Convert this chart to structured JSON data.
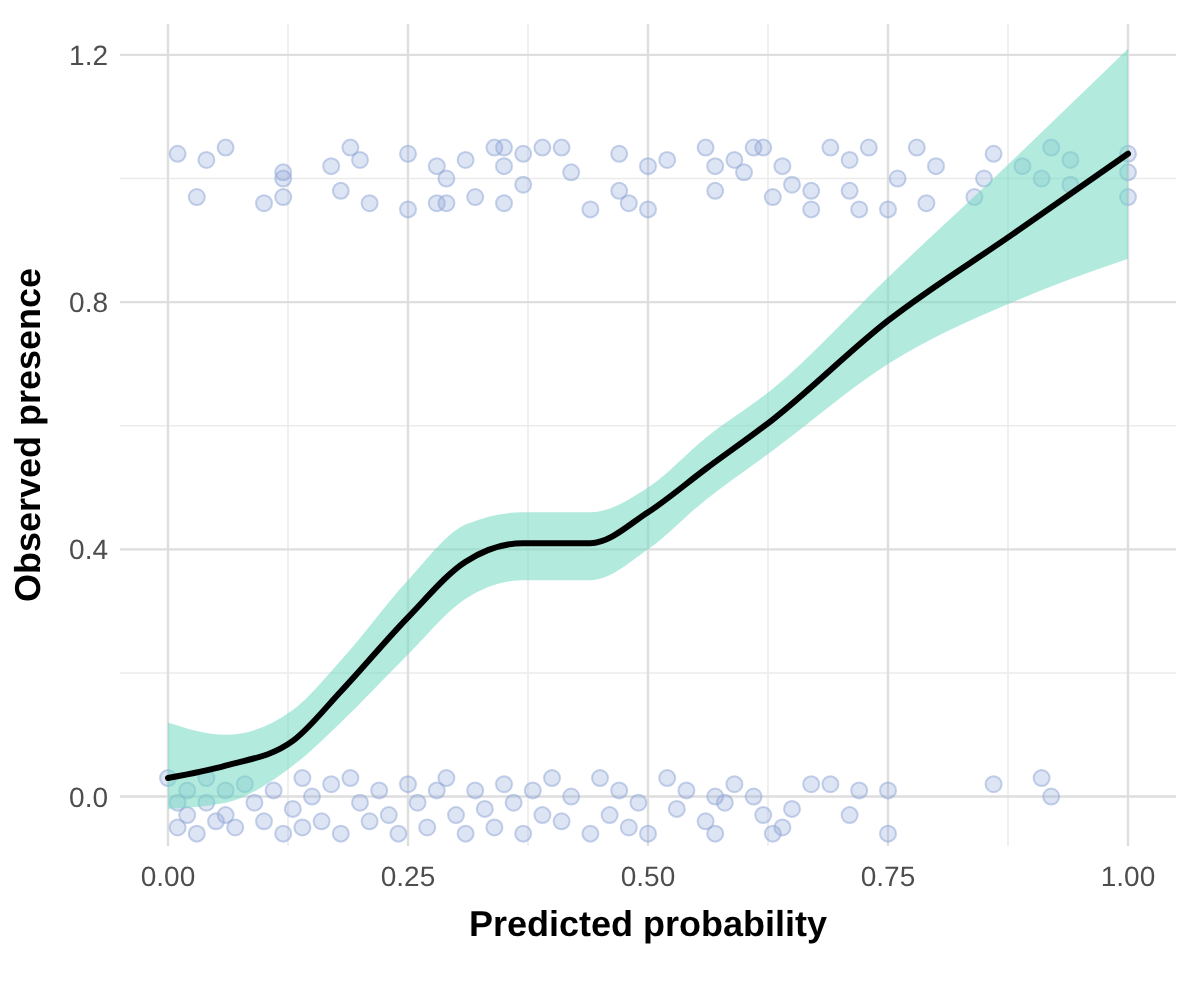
{
  "chart_data": {
    "type": "scatter",
    "xlabel": "Predicted probability",
    "ylabel": "Observed presence",
    "xlim": [
      -0.05,
      1.05
    ],
    "ylim": [
      -0.08,
      1.25
    ],
    "xticks": [
      {
        "value": 0,
        "label": "0.00"
      },
      {
        "value": 0.25,
        "label": "0.25"
      },
      {
        "value": 0.5,
        "label": "0.50"
      },
      {
        "value": 0.75,
        "label": "0.75"
      },
      {
        "value": 1,
        "label": "1.00"
      }
    ],
    "yticks": [
      {
        "value": 0,
        "label": "0.0"
      },
      {
        "value": 0.4,
        "label": "0.4"
      },
      {
        "value": 0.8,
        "label": "0.8"
      },
      {
        "value": 1.2,
        "label": "1.2"
      }
    ],
    "grid": true,
    "marker": "circle",
    "series": [
      {
        "color": "#8ea6d6",
        "x": [
          0.01,
          0.03,
          0.04,
          0.06,
          0.1,
          0.12,
          0.12,
          0.12,
          0.17,
          0.18,
          0.19,
          0.2,
          0.21,
          0.25,
          0.25,
          0.28,
          0.28,
          0.29,
          0.29,
          0.31,
          0.32,
          0.34,
          0.35,
          0.35,
          0.35,
          0.37,
          0.37,
          0.39,
          0.41,
          0.42,
          0.44,
          0.47,
          0.47,
          0.48,
          0.5,
          0.5,
          0.52,
          0.56,
          0.57,
          0.57,
          0.59,
          0.6,
          0.61,
          0.62,
          0.63,
          0.64,
          0.65,
          0.67,
          0.67,
          0.69,
          0.71,
          0.71,
          0.72,
          0.73,
          0.75,
          0.76,
          0.78,
          0.79,
          0.8,
          0.84,
          0.85,
          0.86,
          0.89,
          0.91,
          0.92,
          0.94,
          0.94,
          1.0,
          1.0,
          1.0
        ],
        "values": [
          1.04,
          0.97,
          1.03,
          1.05,
          0.96,
          1.01,
          1.0,
          0.97,
          1.02,
          0.98,
          1.05,
          1.03,
          0.96,
          1.04,
          0.95,
          1.02,
          0.96,
          1.0,
          0.96,
          1.03,
          0.97,
          1.05,
          1.05,
          1.02,
          0.96,
          0.99,
          1.04,
          1.05,
          1.05,
          1.01,
          0.95,
          0.98,
          1.04,
          0.96,
          1.02,
          0.95,
          1.03,
          1.05,
          0.98,
          1.02,
          1.03,
          1.01,
          1.05,
          1.05,
          0.97,
          1.02,
          0.99,
          0.98,
          0.95,
          1.05,
          1.03,
          0.98,
          0.95,
          1.05,
          0.95,
          1.0,
          1.05,
          0.96,
          1.02,
          0.97,
          1.0,
          1.04,
          1.02,
          1.0,
          1.05,
          1.03,
          0.99,
          1.04,
          1.01,
          0.97
        ]
      },
      {
        "color": "#8ea6d6",
        "x": [
          0.0,
          0.01,
          0.01,
          0.02,
          0.02,
          0.03,
          0.04,
          0.04,
          0.05,
          0.06,
          0.06,
          0.07,
          0.08,
          0.09,
          0.1,
          0.11,
          0.12,
          0.13,
          0.14,
          0.14,
          0.15,
          0.16,
          0.17,
          0.18,
          0.19,
          0.2,
          0.21,
          0.22,
          0.23,
          0.24,
          0.25,
          0.26,
          0.27,
          0.28,
          0.29,
          0.3,
          0.31,
          0.32,
          0.33,
          0.34,
          0.35,
          0.36,
          0.37,
          0.38,
          0.39,
          0.4,
          0.41,
          0.42,
          0.44,
          0.45,
          0.46,
          0.47,
          0.48,
          0.49,
          0.5,
          0.52,
          0.53,
          0.54,
          0.56,
          0.57,
          0.57,
          0.58,
          0.59,
          0.61,
          0.62,
          0.63,
          0.64,
          0.65,
          0.67,
          0.69,
          0.71,
          0.72,
          0.75,
          0.75,
          0.86,
          0.91,
          0.92
        ],
        "values": [
          0.03,
          -0.01,
          -0.05,
          0.01,
          -0.03,
          -0.06,
          0.03,
          -0.01,
          -0.04,
          0.01,
          -0.03,
          -0.05,
          0.02,
          -0.01,
          -0.04,
          0.01,
          -0.06,
          -0.02,
          0.03,
          -0.05,
          0.0,
          -0.04,
          0.02,
          -0.06,
          0.03,
          -0.01,
          -0.04,
          0.01,
          -0.03,
          -0.06,
          0.02,
          -0.01,
          -0.05,
          0.01,
          0.03,
          -0.03,
          -0.06,
          0.01,
          -0.02,
          -0.05,
          0.02,
          -0.01,
          -0.06,
          0.01,
          -0.03,
          0.03,
          -0.04,
          0.0,
          -0.06,
          0.03,
          -0.03,
          0.01,
          -0.05,
          -0.01,
          -0.06,
          0.03,
          -0.02,
          0.01,
          -0.04,
          0.0,
          -0.06,
          -0.01,
          0.02,
          0.0,
          -0.03,
          -0.06,
          -0.05,
          -0.02,
          0.02,
          0.02,
          -0.03,
          0.01,
          0.01,
          -0.06,
          0.02,
          0.03,
          0.0
        ]
      },
      {
        "type": "line",
        "color": "#000000",
        "marker": "none",
        "x": [
          0.0,
          0.06,
          0.13,
          0.18,
          0.25,
          0.31,
          0.37,
          0.44,
          0.5,
          0.56,
          0.63,
          0.75,
          0.88,
          1.0
        ],
        "values": [
          0.03,
          0.05,
          0.09,
          0.17,
          0.29,
          0.38,
          0.41,
          0.41,
          0.46,
          0.53,
          0.61,
          0.77,
          0.91,
          1.04
        ],
        "lower": [
          -0.02,
          -0.01,
          0.05,
          0.12,
          0.23,
          0.32,
          0.35,
          0.35,
          0.4,
          0.48,
          0.56,
          0.7,
          0.8,
          0.87
        ],
        "upper": [
          0.12,
          0.1,
          0.14,
          0.22,
          0.35,
          0.44,
          0.46,
          0.46,
          0.5,
          0.58,
          0.66,
          0.84,
          1.03,
          1.21
        ]
      }
    ]
  }
}
